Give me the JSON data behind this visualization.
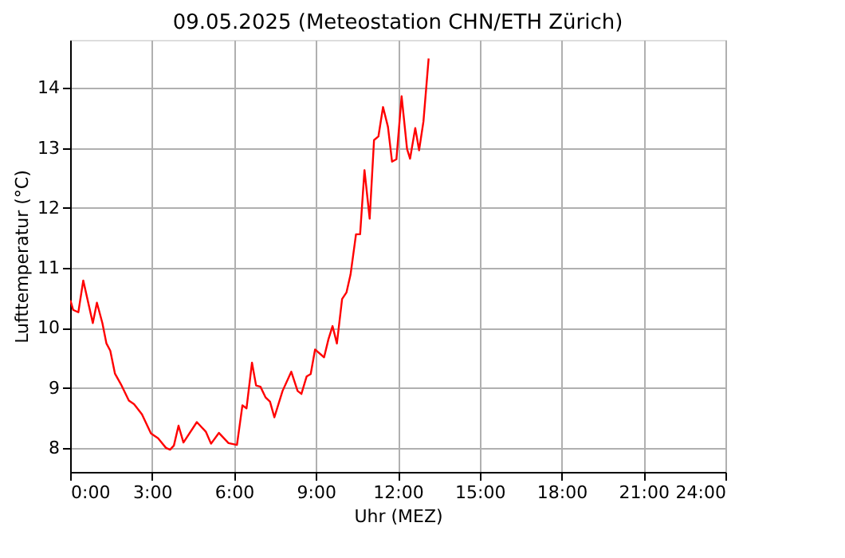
{
  "chart_data": {
    "type": "line",
    "title": "09.05.2025  (Meteostation CHN/ETH Zürich)",
    "xlabel": "Uhr (MEZ)",
    "ylabel": "Lufttemperatur (°C)",
    "x": [
      0.01,
      0.11,
      0.3,
      0.48,
      0.83,
      0.98,
      1.18,
      1.33,
      1.47,
      1.64,
      1.86,
      2.15,
      2.34,
      2.63,
      2.96,
      3.22,
      3.51,
      3.66,
      3.8,
      3.97,
      4.15,
      4.64,
      4.97,
      5.16,
      5.45,
      5.8,
      6.11,
      6.31,
      6.46,
      6.66,
      6.81,
      6.97,
      7.16,
      7.32,
      7.48,
      7.78,
      8.1,
      8.33,
      8.47,
      8.66,
      8.81,
      8.97,
      9.3,
      9.46,
      9.61,
      9.77,
      9.96,
      10.12,
      10.27,
      10.47,
      10.62,
      10.78,
      10.97,
      11.13,
      11.29,
      11.46,
      11.64,
      11.79,
      11.95,
      12.14,
      12.34,
      12.45,
      12.64,
      12.78,
      12.94,
      13.13
    ],
    "series": [
      {
        "color": "#ff0000",
        "values": [
          10.46,
          10.3,
          10.26,
          10.79,
          10.08,
          10.42,
          10.08,
          9.74,
          9.62,
          9.24,
          9.06,
          8.79,
          8.73,
          8.56,
          8.24,
          8.16,
          8.0,
          7.97,
          8.04,
          8.37,
          8.09,
          8.43,
          8.27,
          8.07,
          8.25,
          8.08,
          8.05,
          8.71,
          8.66,
          9.42,
          9.04,
          9.02,
          8.84,
          8.77,
          8.51,
          8.95,
          9.27,
          8.95,
          8.9,
          9.19,
          9.23,
          9.64,
          9.51,
          9.81,
          10.03,
          9.74,
          10.48,
          10.59,
          10.89,
          11.56,
          11.56,
          12.63,
          11.82,
          13.13,
          13.19,
          13.68,
          13.35,
          12.77,
          12.81,
          13.86,
          12.98,
          12.82,
          13.33,
          12.96,
          13.44,
          14.49
        ]
      }
    ],
    "xlim": [
      0,
      24
    ],
    "xticks": [
      {
        "value": 0,
        "label": "0:00"
      },
      {
        "value": 3,
        "label": "3:00"
      },
      {
        "value": 6,
        "label": "6:00"
      },
      {
        "value": 9,
        "label": "9:00"
      },
      {
        "value": 12,
        "label": "12:00"
      },
      {
        "value": 15,
        "label": "15:00"
      },
      {
        "value": 18,
        "label": "18:00"
      },
      {
        "value": 21,
        "label": "21:00"
      },
      {
        "value": 24,
        "label": "24:00"
      }
    ],
    "ylim": [
      7.6,
      14.8
    ],
    "yticks": [
      8,
      9,
      10,
      11,
      12,
      13,
      14
    ],
    "grid": true
  }
}
